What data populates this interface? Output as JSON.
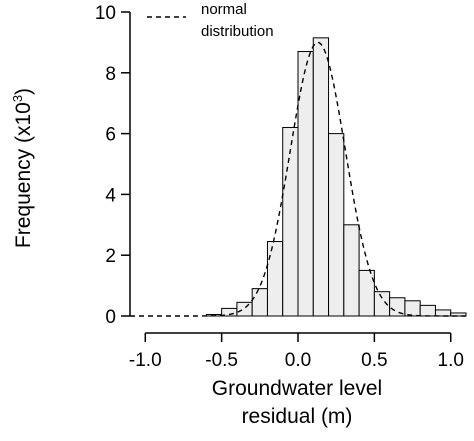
{
  "chart_data": {
    "type": "bar",
    "title": "",
    "xlabel_lines": [
      "Groundwater level",
      "residual (m)"
    ],
    "ylabel": "Frequency (x10",
    "ylabel_superscript": "3",
    "ylabel_suffix": ")",
    "xlim": [
      -1.1,
      1.1
    ],
    "ylim": [
      0,
      10
    ],
    "bin_width": 0.1,
    "x_ticks": [
      -1.0,
      -0.5,
      0.0,
      0.5,
      1.0
    ],
    "x_tick_labels": [
      "-1.0",
      "-0.5",
      "0.0",
      "0.5",
      "1.0"
    ],
    "y_ticks": [
      0,
      2,
      4,
      6,
      8,
      10
    ],
    "y_tick_labels": [
      "0",
      "2",
      "4",
      "6",
      "8",
      "10"
    ],
    "bins": [
      {
        "left": -0.6,
        "right": -0.5,
        "value": 0.05
      },
      {
        "left": -0.5,
        "right": -0.4,
        "value": 0.25
      },
      {
        "left": -0.4,
        "right": -0.3,
        "value": 0.45
      },
      {
        "left": -0.3,
        "right": -0.2,
        "value": 0.9
      },
      {
        "left": -0.2,
        "right": -0.1,
        "value": 2.45
      },
      {
        "left": -0.1,
        "right": 0.0,
        "value": 6.2
      },
      {
        "left": 0.0,
        "right": 0.1,
        "value": 8.7
      },
      {
        "left": 0.1,
        "right": 0.2,
        "value": 9.15
      },
      {
        "left": 0.2,
        "right": 0.3,
        "value": 6.0
      },
      {
        "left": 0.3,
        "right": 0.4,
        "value": 3.0
      },
      {
        "left": 0.4,
        "right": 0.5,
        "value": 1.5
      },
      {
        "left": 0.5,
        "right": 0.6,
        "value": 0.8
      },
      {
        "left": 0.6,
        "right": 0.7,
        "value": 0.6
      },
      {
        "left": 0.7,
        "right": 0.8,
        "value": 0.5
      },
      {
        "left": 0.8,
        "right": 0.9,
        "value": 0.35
      },
      {
        "left": 0.9,
        "right": 1.0,
        "value": 0.2
      },
      {
        "left": 1.0,
        "right": 1.1,
        "value": 0.1
      }
    ],
    "normal_curve": {
      "name_lines": [
        "normal",
        "distribution"
      ],
      "mean": 0.13,
      "sd": 0.18,
      "peak": 9.0,
      "style": "dashed"
    },
    "legend_position": "top-left",
    "bar_fill": "#eeeeee",
    "bar_stroke": "#000000"
  }
}
